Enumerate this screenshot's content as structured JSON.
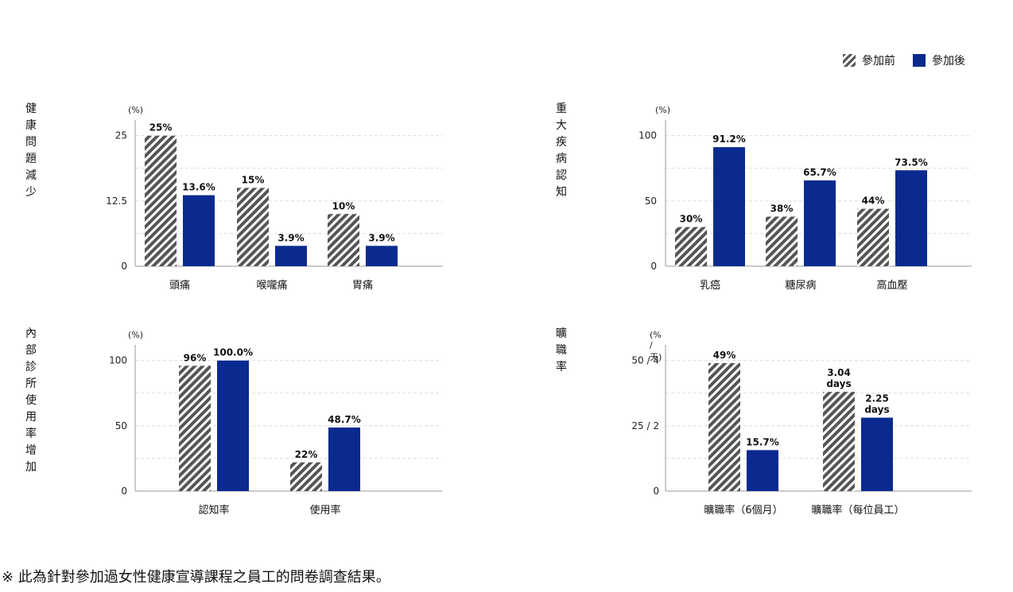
{
  "legend": {
    "before_label": "參加前",
    "after_label": "參加後",
    "before_color": "#555555",
    "after_color": "#0a2a8f"
  },
  "chart_data": [
    {
      "type": "bar",
      "title": "健康問題減少",
      "unit": "(%)",
      "categories": [
        "頭痛",
        "喉嚨痛",
        "胃痛"
      ],
      "series": [
        {
          "name": "參加前",
          "values": [
            25,
            15,
            10
          ],
          "labels": [
            "25%",
            "15%",
            "10%"
          ]
        },
        {
          "name": "參加後",
          "values": [
            13.6,
            3.9,
            3.9
          ],
          "labels": [
            "13.6%",
            "3.9%",
            "3.9%"
          ]
        }
      ],
      "ylim": [
        0,
        28
      ],
      "yticks": [
        0,
        12.5,
        25
      ],
      "ytick_labels": [
        "0",
        "12.5",
        "25"
      ],
      "grid": true
    },
    {
      "type": "bar",
      "title": "重大疾病認知",
      "unit": "(%)",
      "categories": [
        "乳癌",
        "糖尿病",
        "高血壓"
      ],
      "series": [
        {
          "name": "參加前",
          "values": [
            30,
            38,
            44
          ],
          "labels": [
            "30%",
            "38%",
            "44%"
          ]
        },
        {
          "name": "參加後",
          "values": [
            91.2,
            65.7,
            73.5
          ],
          "labels": [
            "91.2%",
            "65.7%",
            "73.5%"
          ]
        }
      ],
      "ylim": [
        0,
        112
      ],
      "yticks": [
        0,
        50,
        100
      ],
      "ytick_labels": [
        "0",
        "50",
        "100"
      ],
      "grid": true
    },
    {
      "type": "bar",
      "title": "內部診所\n使用率增加",
      "unit": "(%)",
      "categories": [
        "認知率",
        "使用率"
      ],
      "series": [
        {
          "name": "參加前",
          "values": [
            96,
            22
          ],
          "labels": [
            "96%",
            "22%"
          ]
        },
        {
          "name": "參加後",
          "values": [
            100,
            48.7
          ],
          "labels": [
            "100.0%",
            "48.7%"
          ]
        }
      ],
      "ylim": [
        0,
        112
      ],
      "yticks": [
        0,
        50,
        100
      ],
      "ytick_labels": [
        "0",
        "50",
        "100"
      ],
      "grid": true
    },
    {
      "type": "bar",
      "title": "曠職率",
      "unit": "(% / 天)",
      "categories": [
        "曠職率（6個月）",
        "曠職率（每位員工）"
      ],
      "series": [
        {
          "name": "參加前",
          "values": [
            49,
            3.04
          ],
          "labels": [
            "49%",
            "3.04\ndays"
          ]
        },
        {
          "name": "參加後",
          "values": [
            15.7,
            2.25
          ],
          "labels": [
            "15.7%",
            "2.25\ndays"
          ]
        }
      ],
      "ylim": [
        0,
        56
      ],
      "yticks": [
        0,
        25,
        50
      ],
      "ytick_labels": [
        "0",
        "25 / 2",
        "50 / 4"
      ],
      "grid": true
    }
  ],
  "footnote": "※ 此為針對參加過女性健康宣導課程之員工的問卷調查結果。"
}
